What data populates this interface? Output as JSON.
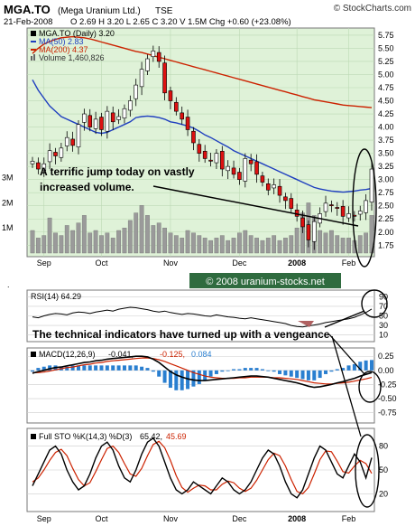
{
  "header": {
    "symbol": "MGA.TO",
    "company": "(Mega Uranium Ltd.)",
    "exchange": "TSE",
    "date": "21-Feb-2008",
    "quote": "O 2.69  H 3.20  L 2.65  C 3.20  V 1.5M  Chg +0.60 (+23.08%)",
    "watermark": "© StockCharts.com"
  },
  "price_panel": {
    "legend": [
      {
        "text": "MGA.TO (Daily) 3.20",
        "color": "#000000"
      },
      {
        "text": "MA(50) 2.83",
        "color": "#1f3fbf"
      },
      {
        "text": "MA(200) 4.37",
        "color": "#cc2200"
      },
      {
        "text": "Volume 1,460,826",
        "color": "#555555"
      }
    ],
    "annotation_line1": "A terrific jump today on vastly",
    "annotation_line2": "increased volume.",
    "right_ticks": [
      "5.75",
      "5.50",
      "5.25",
      "5.00",
      "4.75",
      "4.50",
      "4.25",
      "4.00",
      "3.75",
      "3.50",
      "3.25",
      "3.00",
      "2.75",
      "2.50",
      "2.25",
      "2.00",
      "1.75"
    ],
    "left_ticks": [
      "3M",
      "2M",
      "1M"
    ]
  },
  "x_axis_months": [
    "Sep",
    "Oct",
    "Nov",
    "Dec",
    "2008",
    "Feb"
  ],
  "copyright_banner": "© 2008 uranium-stocks.net",
  "rsi_panel": {
    "legend": "RSI(14) 64.29",
    "ticks": [
      "90",
      "70",
      "50",
      "30",
      "10"
    ],
    "annotation": "The technical indicators have turned up with a vengeance"
  },
  "macd_panel": {
    "legend_name": "MACD(12,26,9)",
    "legend_macd": "-0.041,",
    "legend_signal": "-0.125,",
    "legend_hist": "0.084",
    "ticks": [
      "0.25",
      "0.00",
      "-0.25",
      "-0.50",
      "-0.75"
    ]
  },
  "sto_panel": {
    "legend_name": "Full STO %K(14,3) %D(3)",
    "legend_k": "65.42,",
    "legend_d": "45.69",
    "ticks": [
      "80",
      "50",
      "20"
    ]
  },
  "colors": {
    "plot_bg": "#dff2d8",
    "grid": "#bcd9b4",
    "ma50": "#1f3fbf",
    "ma200": "#cc2200",
    "up_candle": "#ffffff",
    "down_candle": "#dd1111",
    "volume": "#9a9a9a",
    "macd_hist": "#2a7fd0",
    "banner_bg": "#2f6b3f",
    "signal": "#cc2200"
  },
  "chart_data": {
    "type": "line",
    "title": "MGA.TO (Mega Uranium Ltd.) TSE",
    "x": [
      "Sep",
      "Oct",
      "Nov",
      "Dec",
      "2008",
      "Feb"
    ],
    "price": {
      "close": [
        3.35,
        3.2,
        3.3,
        3.55,
        3.45,
        3.6,
        3.8,
        3.65,
        4.05,
        4.25,
        4.0,
        4.15,
        3.95,
        4.3,
        4.1,
        4.2,
        4.35,
        4.5,
        4.8,
        5.1,
        5.3,
        5.45,
        5.25,
        4.65,
        4.5,
        4.3,
        4.15,
        3.95,
        3.7,
        3.5,
        3.4,
        3.35,
        3.5,
        3.2,
        3.25,
        3.1,
        3.0,
        3.4,
        3.3,
        3.1,
        2.95,
        2.8,
        2.9,
        2.7,
        2.6,
        2.45,
        2.3,
        2.1,
        1.85,
        2.2,
        2.35,
        2.55,
        2.5,
        2.45,
        2.3,
        2.35,
        2.3,
        2.4,
        2.6,
        3.2
      ],
      "ma50": [
        4.9,
        4.7,
        4.55,
        4.4,
        4.3,
        4.2,
        4.15,
        4.1,
        4.05,
        4.0,
        3.95,
        3.9,
        3.88,
        3.9,
        3.95,
        4.0,
        4.05,
        4.1,
        4.18,
        4.2,
        4.21,
        4.2,
        4.18,
        4.15,
        4.1,
        4.08,
        4.05,
        4.02,
        3.98,
        3.92,
        3.85,
        3.8,
        3.74,
        3.68,
        3.62,
        3.55,
        3.5,
        3.45,
        3.4,
        3.35,
        3.3,
        3.25,
        3.2,
        3.15,
        3.1,
        3.05,
        3.0,
        2.95,
        2.9,
        2.85,
        2.82,
        2.8,
        2.78,
        2.77,
        2.76,
        2.77,
        2.78,
        2.8,
        2.81,
        2.83
      ],
      "ma200": [
        5.4,
        5.5,
        5.58,
        5.63,
        5.67,
        5.7,
        5.71,
        5.72,
        5.71,
        5.7,
        5.68,
        5.65,
        5.62,
        5.59,
        5.56,
        5.53,
        5.5,
        5.47,
        5.44,
        5.42,
        5.39,
        5.36,
        5.33,
        5.3,
        5.27,
        5.24,
        5.21,
        5.18,
        5.15,
        5.12,
        5.09,
        5.06,
        5.03,
        5.0,
        4.97,
        4.94,
        4.91,
        4.88,
        4.85,
        4.82,
        4.79,
        4.76,
        4.73,
        4.7,
        4.67,
        4.64,
        4.61,
        4.58,
        4.55,
        4.52,
        4.5,
        4.48,
        4.46,
        4.44,
        4.42,
        4.41,
        4.4,
        4.39,
        4.38,
        4.37
      ],
      "volume_millions": [
        0.9,
        0.6,
        0.7,
        1.4,
        0.8,
        0.7,
        1.1,
        0.9,
        1.2,
        1.5,
        0.8,
        0.9,
        0.7,
        0.8,
        0.6,
        0.9,
        1.0,
        1.3,
        1.6,
        1.9,
        1.5,
        1.1,
        1.2,
        1.0,
        0.8,
        0.7,
        0.6,
        0.9,
        0.8,
        0.7,
        0.6,
        0.5,
        0.6,
        0.7,
        0.5,
        0.6,
        0.8,
        0.9,
        0.7,
        0.6,
        0.5,
        0.6,
        0.7,
        0.5,
        0.6,
        0.7,
        1.0,
        1.6,
        2.0,
        1.5,
        0.9,
        0.8,
        0.9,
        0.7,
        0.6,
        0.6,
        0.5,
        0.7,
        0.8,
        1.5
      ],
      "ylim": [
        1.6,
        5.8
      ]
    },
    "rsi": {
      "values": [
        48,
        46,
        50,
        53,
        55,
        54,
        52,
        56,
        58,
        57,
        55,
        58,
        60,
        62,
        60,
        64,
        66,
        68,
        67,
        65,
        63,
        60,
        58,
        60,
        57,
        55,
        53,
        55,
        54,
        52,
        50,
        49,
        52,
        50,
        48,
        47,
        45,
        44,
        46,
        44,
        42,
        40,
        38,
        36,
        34,
        30,
        28,
        27,
        29,
        31,
        33,
        36,
        38,
        40,
        42,
        44,
        47,
        52,
        57,
        64.29
      ],
      "ylim": [
        0,
        100
      ]
    },
    "macd": {
      "macd": [
        -0.05,
        -0.02,
        0.0,
        0.03,
        0.05,
        0.06,
        0.08,
        0.1,
        0.12,
        0.14,
        0.15,
        0.17,
        0.18,
        0.2,
        0.21,
        0.22,
        0.23,
        0.24,
        0.25,
        0.25,
        0.24,
        0.2,
        0.14,
        0.06,
        -0.02,
        -0.08,
        -0.12,
        -0.15,
        -0.17,
        -0.18,
        -0.18,
        -0.17,
        -0.16,
        -0.15,
        -0.14,
        -0.13,
        -0.12,
        -0.11,
        -0.1,
        -0.1,
        -0.11,
        -0.12,
        -0.14,
        -0.16,
        -0.18,
        -0.2,
        -0.22,
        -0.25,
        -0.28,
        -0.3,
        -0.29,
        -0.27,
        -0.25,
        -0.22,
        -0.2,
        -0.17,
        -0.14,
        -0.1,
        -0.07,
        -0.041
      ],
      "signal": [
        -0.04,
        -0.04,
        -0.03,
        -0.01,
        0.01,
        0.03,
        0.05,
        0.06,
        0.08,
        0.1,
        0.11,
        0.13,
        0.14,
        0.16,
        0.17,
        0.18,
        0.19,
        0.2,
        0.21,
        0.22,
        0.22,
        0.21,
        0.19,
        0.16,
        0.12,
        0.08,
        0.04,
        0.0,
        -0.04,
        -0.07,
        -0.1,
        -0.12,
        -0.13,
        -0.14,
        -0.14,
        -0.14,
        -0.13,
        -0.13,
        -0.12,
        -0.12,
        -0.12,
        -0.12,
        -0.13,
        -0.13,
        -0.14,
        -0.15,
        -0.16,
        -0.18,
        -0.2,
        -0.22,
        -0.23,
        -0.24,
        -0.24,
        -0.23,
        -0.22,
        -0.21,
        -0.19,
        -0.17,
        -0.15,
        -0.125
      ],
      "ylim": [
        -0.9,
        0.35
      ]
    },
    "stochastic": {
      "k": [
        30,
        45,
        60,
        75,
        80,
        70,
        50,
        35,
        25,
        30,
        45,
        65,
        80,
        85,
        75,
        55,
        40,
        35,
        50,
        70,
        85,
        90,
        80,
        60,
        40,
        25,
        20,
        25,
        35,
        30,
        25,
        20,
        30,
        40,
        35,
        25,
        20,
        25,
        35,
        50,
        65,
        75,
        70,
        55,
        35,
        20,
        15,
        25,
        45,
        65,
        80,
        75,
        60,
        45,
        40,
        55,
        70,
        60,
        40,
        65.42
      ],
      "d": [
        35,
        40,
        50,
        62,
        72,
        76,
        68,
        52,
        38,
        30,
        34,
        48,
        63,
        77,
        80,
        72,
        58,
        45,
        42,
        52,
        68,
        82,
        86,
        78,
        62,
        43,
        28,
        22,
        27,
        31,
        30,
        25,
        25,
        32,
        36,
        34,
        27,
        23,
        27,
        37,
        50,
        63,
        71,
        68,
        55,
        38,
        23,
        20,
        28,
        45,
        63,
        74,
        73,
        61,
        48,
        46,
        55,
        62,
        58,
        45.69
      ],
      "ylim": [
        0,
        100
      ]
    }
  }
}
